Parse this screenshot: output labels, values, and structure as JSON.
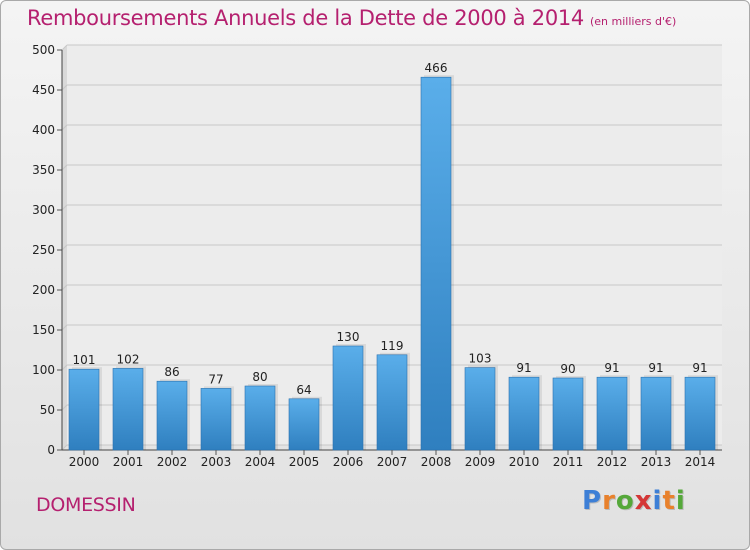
{
  "title": "Remboursements Annuels de la Dette de 2000 à 2014",
  "unit": "(en milliers d'€)",
  "commune": "DOMESSIN",
  "logo": {
    "letters": [
      "P",
      "r",
      "o",
      "x",
      "i",
      "t",
      "i"
    ],
    "colors": [
      "#3d7fd6",
      "#e8812c",
      "#55a83a",
      "#d43737",
      "#3d7fd6",
      "#e8812c",
      "#55a83a"
    ]
  },
  "colors": {
    "bar_top": "#5aaeea",
    "bar_bottom": "#2f7fbf",
    "accent": "#b5206f"
  },
  "chart_data": {
    "type": "bar",
    "categories": [
      "2000",
      "2001",
      "2002",
      "2003",
      "2004",
      "2005",
      "2006",
      "2007",
      "2008",
      "2009",
      "2010",
      "2011",
      "2012",
      "2013",
      "2014"
    ],
    "values": [
      101,
      102,
      86,
      77,
      80,
      64,
      130,
      119,
      466,
      103,
      91,
      90,
      91,
      91,
      91
    ],
    "ylim": [
      0,
      500
    ],
    "yticks": [
      0,
      50,
      100,
      150,
      200,
      250,
      300,
      350,
      400,
      450,
      500
    ],
    "grid": true
  }
}
